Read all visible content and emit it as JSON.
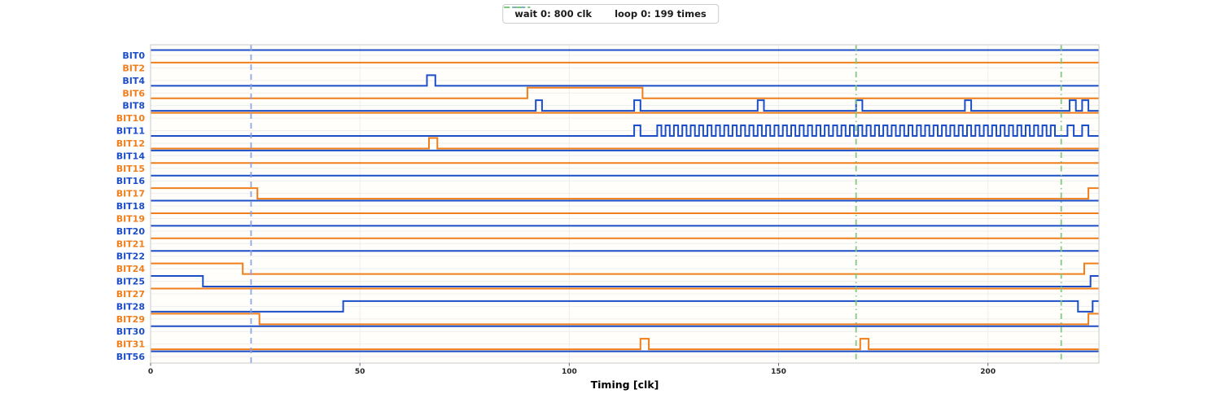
{
  "legend": {
    "items": [
      {
        "id": "wait",
        "label": "wait 0: 800 clk"
      },
      {
        "id": "loop",
        "label": "loop 0: 199 times"
      }
    ]
  },
  "axis": {
    "xlabel": "Timing [clk]",
    "xticks": [
      0,
      50,
      100,
      150,
      200
    ],
    "xmax": 226.5
  },
  "colors": {
    "blue": "#1c4ec8",
    "orange": "#ef7e1b",
    "wait_marker": "#88a2e0",
    "loop_marker": "#7cc87c",
    "grid": "#eeeeee",
    "spine": "#c9c9c9",
    "tick_text": "#262626"
  },
  "chart_data": {
    "type": "line",
    "kind": "digital-timing-diagram",
    "x_unit": "clk",
    "xlim": [
      0,
      226.5
    ],
    "markers": [
      {
        "kind": "wait",
        "x": 24,
        "label": "wait 0: 800 clk"
      },
      {
        "kind": "loop",
        "x": 168.5,
        "label": "loop 0: 199 times"
      },
      {
        "kind": "loop",
        "x": 217.5,
        "label": "loop 0: 199 times"
      }
    ],
    "signals": [
      {
        "name": "BIT0",
        "color": "blue",
        "initial": 1,
        "events": []
      },
      {
        "name": "BIT2",
        "color": "orange",
        "initial": 1,
        "events": []
      },
      {
        "name": "BIT4",
        "color": "blue",
        "initial": 0,
        "events": [
          {
            "e": "pulse",
            "t": 66,
            "w": 2
          }
        ]
      },
      {
        "name": "BIT6",
        "color": "orange",
        "initial": 0,
        "events": [
          {
            "e": "set",
            "t": 90,
            "v": 1
          },
          {
            "e": "set",
            "t": 117.5,
            "v": 0
          }
        ]
      },
      {
        "name": "BIT8",
        "color": "blue",
        "initial": 0,
        "events": [
          {
            "e": "pulse",
            "t": 92,
            "w": 1.5
          },
          {
            "e": "pulse",
            "t": 115.5,
            "w": 1.5
          },
          {
            "e": "pulse",
            "t": 145,
            "w": 1.5
          },
          {
            "e": "pulse",
            "t": 168.5,
            "w": 1.5
          },
          {
            "e": "pulse",
            "t": 194.5,
            "w": 1.5
          },
          {
            "e": "pulse",
            "t": 219.5,
            "w": 1.5
          },
          {
            "e": "pulse",
            "t": 222.5,
            "w": 1.5
          }
        ]
      },
      {
        "name": "BIT10",
        "color": "orange",
        "initial": 1,
        "events": []
      },
      {
        "name": "BIT11",
        "color": "blue",
        "initial": 0,
        "events": [
          {
            "e": "pulse",
            "t": 115.5,
            "w": 1.5
          },
          {
            "e": "clock",
            "t": 121,
            "end": 216,
            "period": 2
          },
          {
            "e": "pulse",
            "t": 219,
            "w": 1.5
          },
          {
            "e": "pulse",
            "t": 222.5,
            "w": 1.5
          }
        ]
      },
      {
        "name": "BIT12",
        "color": "orange",
        "initial": 0,
        "events": [
          {
            "e": "pulse",
            "t": 66.5,
            "w": 2
          }
        ]
      },
      {
        "name": "BIT14",
        "color": "blue",
        "initial": 1,
        "events": []
      },
      {
        "name": "BIT15",
        "color": "orange",
        "initial": 1,
        "events": []
      },
      {
        "name": "BIT16",
        "color": "blue",
        "initial": 1,
        "events": []
      },
      {
        "name": "BIT17",
        "color": "orange",
        "initial": 1,
        "events": [
          {
            "e": "set",
            "t": 25.5,
            "v": 0
          },
          {
            "e": "set",
            "t": 224,
            "v": 1
          }
        ]
      },
      {
        "name": "BIT18",
        "color": "blue",
        "initial": 1,
        "events": []
      },
      {
        "name": "BIT19",
        "color": "orange",
        "initial": 1,
        "events": []
      },
      {
        "name": "BIT20",
        "color": "blue",
        "initial": 1,
        "events": []
      },
      {
        "name": "BIT21",
        "color": "orange",
        "initial": 1,
        "events": []
      },
      {
        "name": "BIT22",
        "color": "blue",
        "initial": 1,
        "events": []
      },
      {
        "name": "BIT24",
        "color": "orange",
        "initial": 1,
        "events": [
          {
            "e": "set",
            "t": 22,
            "v": 0
          },
          {
            "e": "set",
            "t": 223,
            "v": 1
          }
        ]
      },
      {
        "name": "BIT25",
        "color": "blue",
        "initial": 1,
        "events": [
          {
            "e": "set",
            "t": 12.5,
            "v": 0
          },
          {
            "e": "set",
            "t": 224.5,
            "v": 1
          }
        ]
      },
      {
        "name": "BIT27",
        "color": "orange",
        "initial": 1,
        "events": []
      },
      {
        "name": "BIT28",
        "color": "blue",
        "initial": 0,
        "events": [
          {
            "e": "set",
            "t": 46,
            "v": 1
          },
          {
            "e": "set",
            "t": 221.5,
            "v": 0
          },
          {
            "e": "set",
            "t": 225,
            "v": 1
          }
        ]
      },
      {
        "name": "BIT29",
        "color": "orange",
        "initial": 1,
        "events": [
          {
            "e": "set",
            "t": 26,
            "v": 0
          },
          {
            "e": "set",
            "t": 224,
            "v": 1
          }
        ]
      },
      {
        "name": "BIT30",
        "color": "blue",
        "initial": 1,
        "events": []
      },
      {
        "name": "BIT31",
        "color": "orange",
        "initial": 0,
        "events": [
          {
            "e": "pulse",
            "t": 117,
            "w": 2
          },
          {
            "e": "pulse",
            "t": 169.5,
            "w": 2
          }
        ]
      },
      {
        "name": "BIT56",
        "color": "blue",
        "initial": 1,
        "events": []
      }
    ]
  }
}
